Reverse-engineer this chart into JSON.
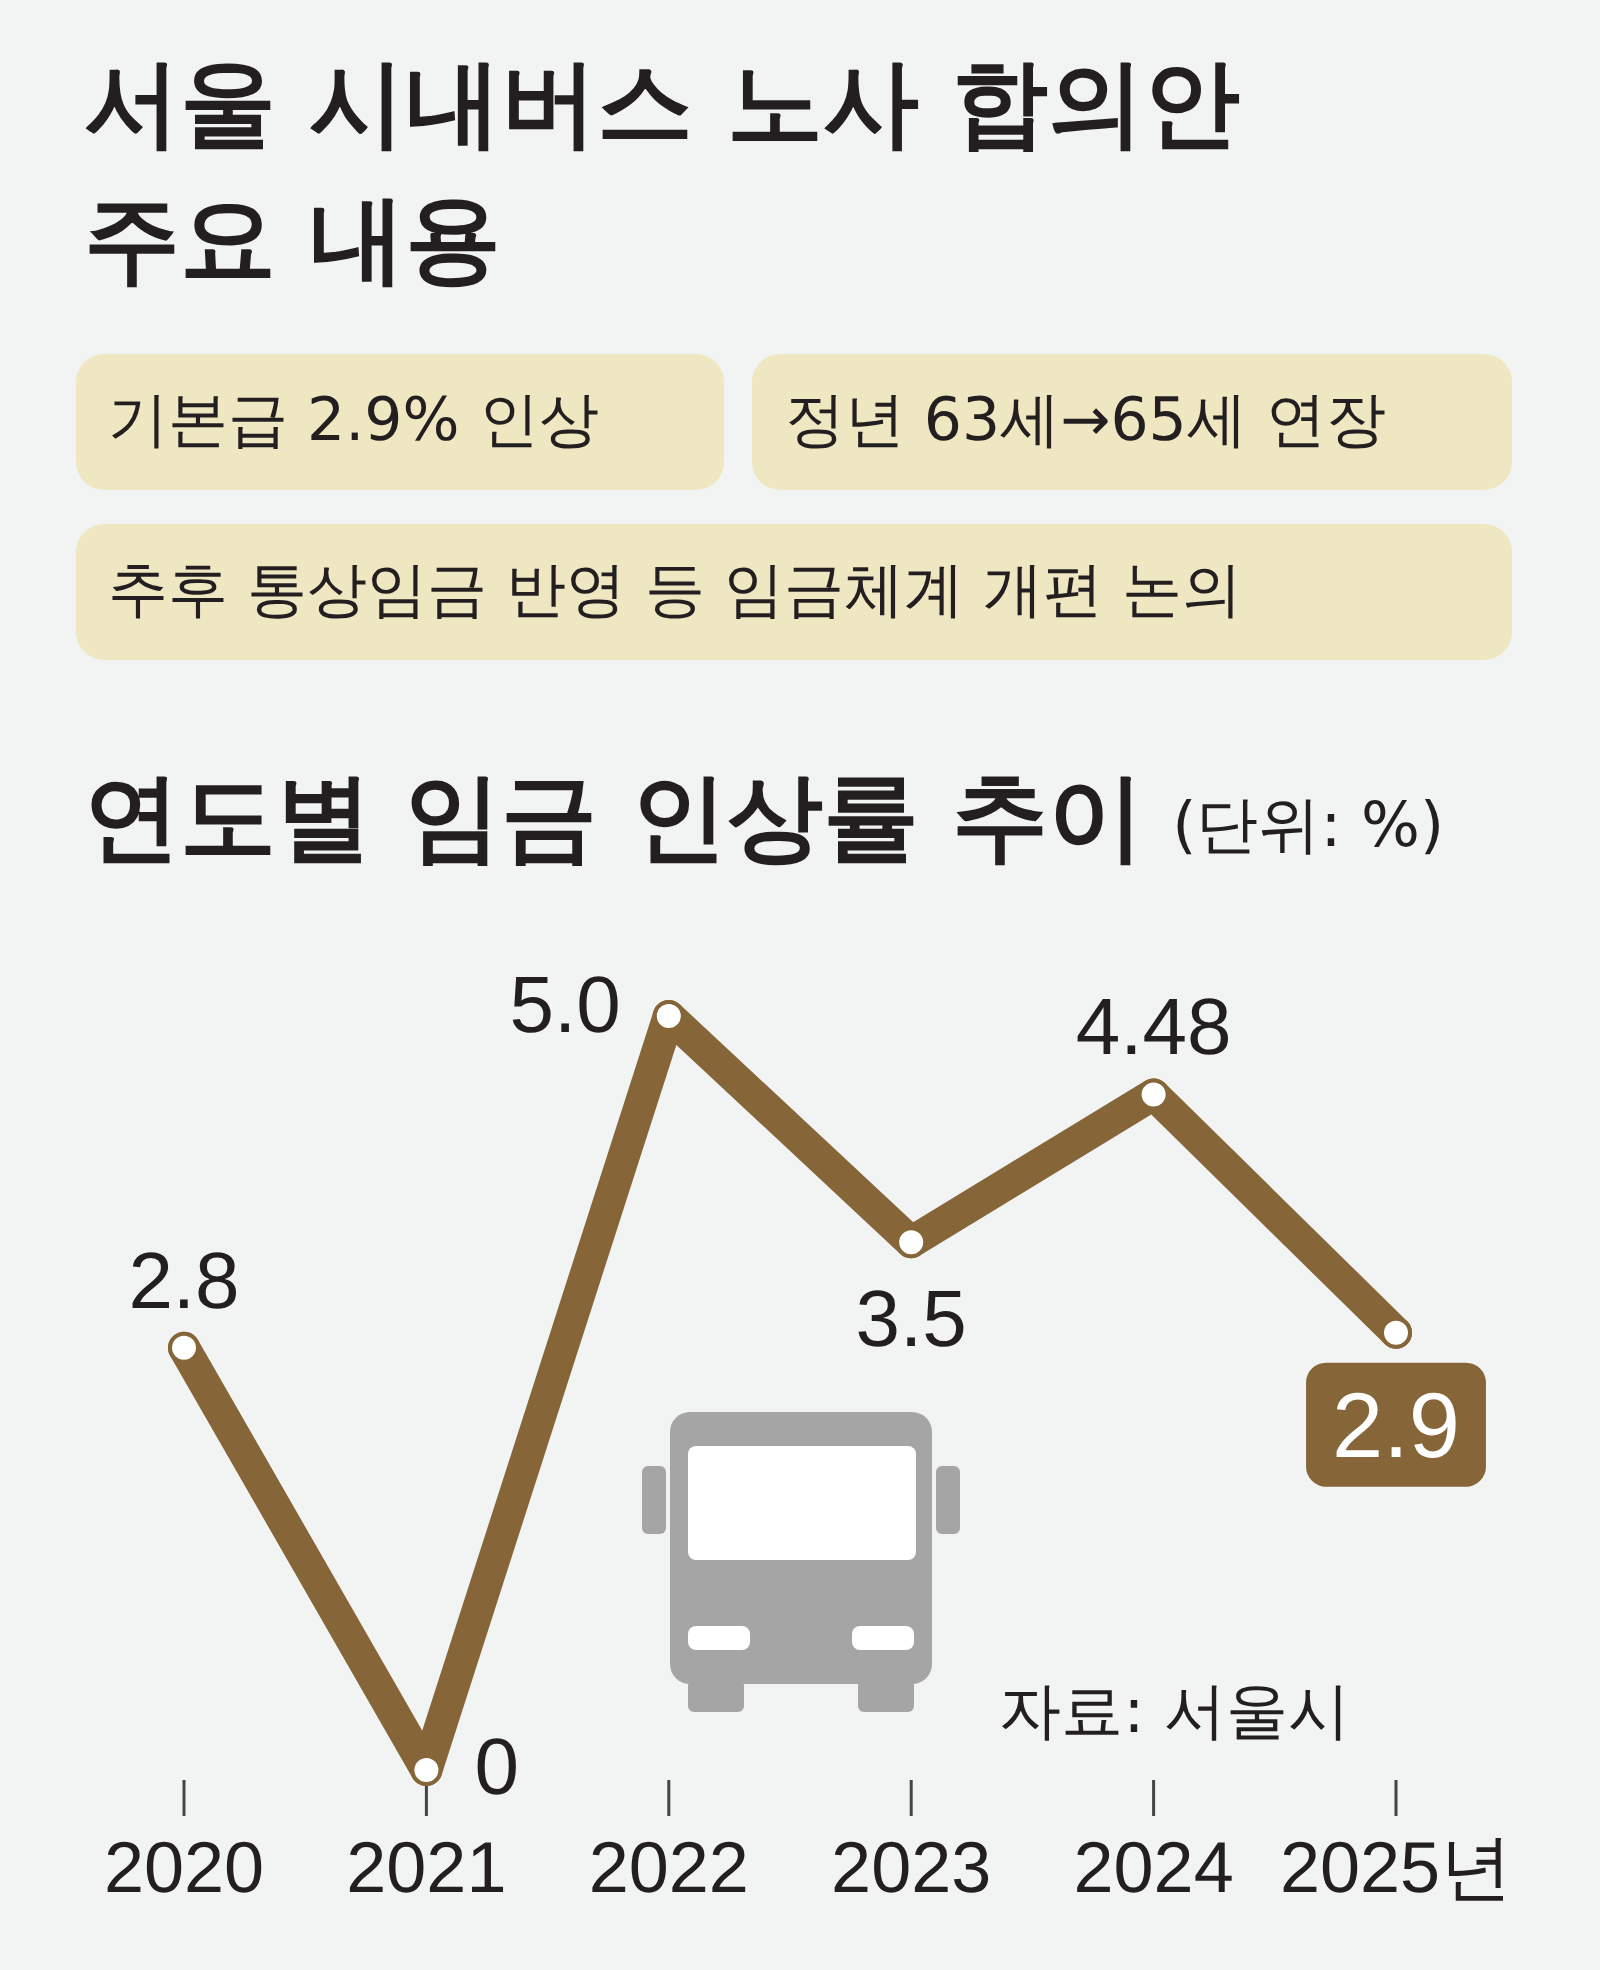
{
  "chart_data": [
    {
      "type": "other",
      "title": "서울 시내버스 노사 합의안 주요 내용",
      "annotations": [
        "기본급 2.9% 인상",
        "정년 63세→65세 연장",
        "추후 통상임금 반영 등 임금체계 개편 논의"
      ]
    },
    {
      "type": "line",
      "title": "연도별 임금 인상률 추이",
      "subtitle": "(단위: %)",
      "categories": [
        "2020",
        "2021",
        "2022",
        "2023",
        "2024",
        "2025년"
      ],
      "series": [
        {
          "color": "#866638",
          "values": [
            2.8,
            0,
            5.0,
            3.5,
            4.48,
            2.9
          ],
          "value_labels": [
            "2.8",
            "0",
            "5.0",
            "3.5",
            "4.48",
            null
          ]
        }
      ],
      "marker": "circle",
      "tick_labels": "x",
      "annotations": [
        "자료: 서울시",
        {
          "text": "2.9",
          "x": "2025년",
          "y": 2.9
        }
      ]
    }
  ]
}
